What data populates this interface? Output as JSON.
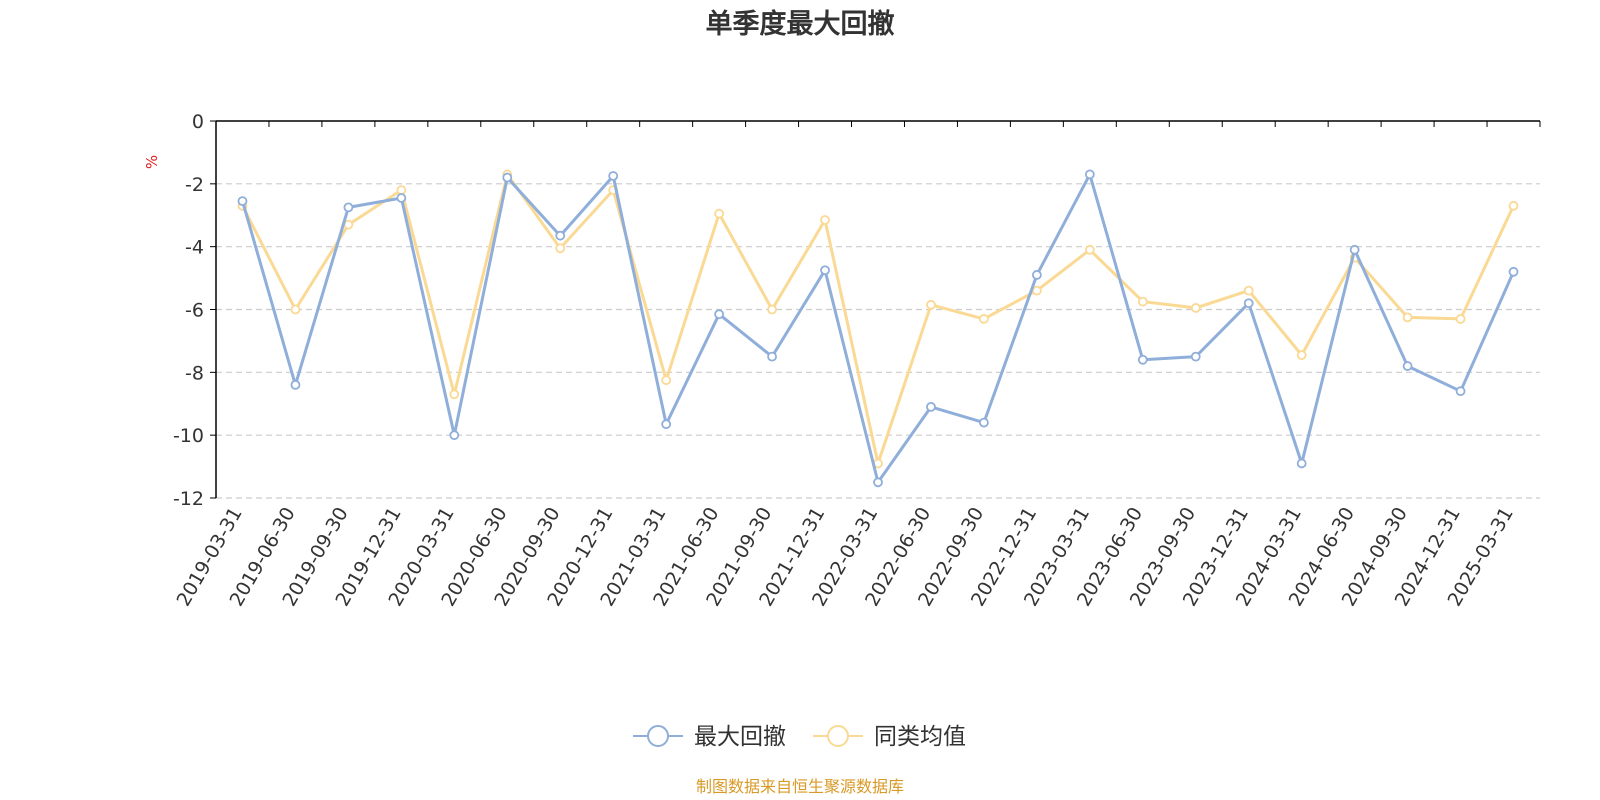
{
  "colors": {
    "series_1": "#8FAEDA",
    "series_2": "#FAD994",
    "source": "#D89A26",
    "unit": "#E02020",
    "grid": "#CCCCCC",
    "axis": "#000000"
  },
  "chart_data": {
    "type": "line",
    "title": "单季度最大回撤",
    "ylabel": "%",
    "ylim": [
      -12,
      0
    ],
    "yticks": [
      "0",
      "-2",
      "-4",
      "-6",
      "-8",
      "-10",
      "-12"
    ],
    "grid": true,
    "legend_position": "bottom-center",
    "categories": [
      "2019-03-31",
      "2019-06-30",
      "2019-09-30",
      "2019-12-31",
      "2020-03-31",
      "2020-06-30",
      "2020-09-30",
      "2020-12-31",
      "2021-03-31",
      "2021-06-30",
      "2021-09-30",
      "2021-12-31",
      "2022-03-31",
      "2022-06-30",
      "2022-09-30",
      "2022-12-31",
      "2023-03-31",
      "2023-06-30",
      "2023-09-30",
      "2023-12-31",
      "2024-03-31",
      "2024-06-30",
      "2024-09-30",
      "2024-12-31",
      "2025-03-31"
    ],
    "series": [
      {
        "name": "最大回撤",
        "values": [
          -2.55,
          -8.4,
          -2.75,
          -2.45,
          -10.0,
          -1.8,
          -3.65,
          -1.75,
          -9.65,
          -6.15,
          -7.5,
          -4.75,
          -11.5,
          -9.1,
          -9.6,
          -4.9,
          -1.7,
          -7.6,
          -7.5,
          -5.8,
          -10.9,
          -4.1,
          -7.8,
          -8.6,
          -4.8
        ]
      },
      {
        "name": "同类均值",
        "values": [
          -2.7,
          -6.0,
          -3.3,
          -2.2,
          -8.7,
          -1.7,
          -4.05,
          -2.2,
          -8.25,
          -2.95,
          -6.0,
          -3.15,
          -10.9,
          -5.85,
          -6.3,
          -5.4,
          -4.1,
          -5.75,
          -5.95,
          -5.4,
          -7.45,
          -4.35,
          -6.25,
          -6.3,
          -2.7
        ]
      }
    ]
  },
  "footer": {
    "source": "制图数据来自恒生聚源数据库"
  }
}
